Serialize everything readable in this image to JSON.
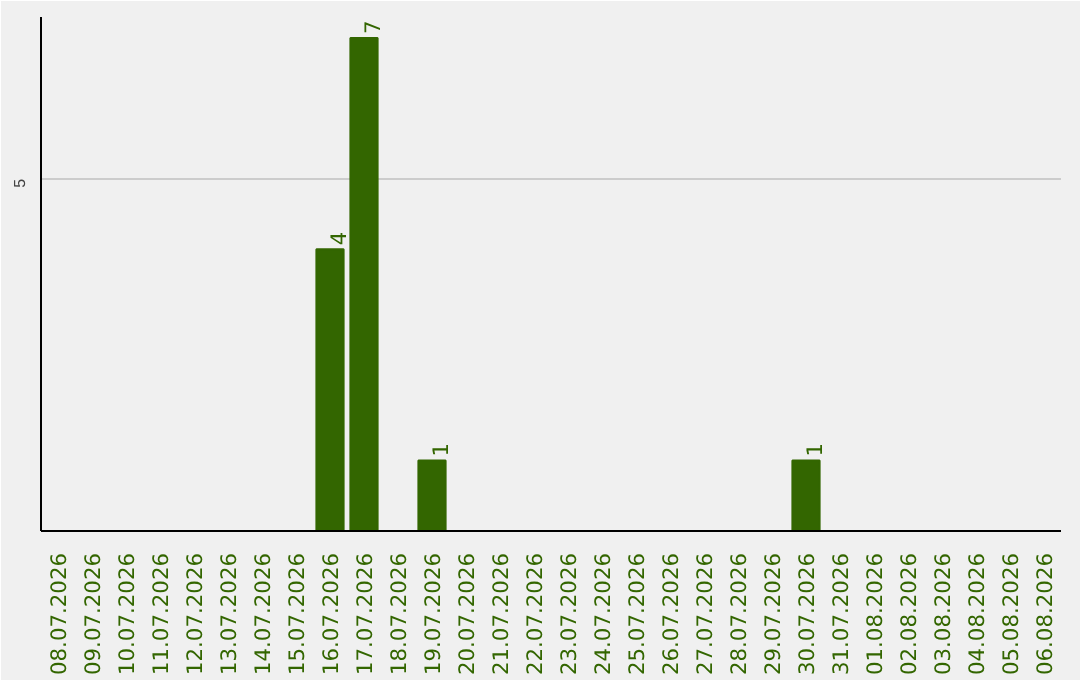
{
  "chart_data": {
    "type": "bar",
    "categories": [
      "08.07.2026",
      "09.07.2026",
      "10.07.2026",
      "11.07.2026",
      "12.07.2026",
      "13.07.2026",
      "14.07.2026",
      "15.07.2026",
      "16.07.2026",
      "17.07.2026",
      "18.07.2026",
      "19.07.2026",
      "20.07.2026",
      "21.07.2026",
      "22.07.2026",
      "23.07.2026",
      "24.07.2026",
      "25.07.2026",
      "26.07.2026",
      "27.07.2026",
      "28.07.2026",
      "29.07.2026",
      "30.07.2026",
      "31.07.2026",
      "01.08.2026",
      "02.08.2026",
      "03.08.2026",
      "04.08.2026",
      "05.08.2026",
      "06.08.2026"
    ],
    "values": [
      0,
      0,
      0,
      0,
      0,
      0,
      0,
      0,
      4,
      7,
      0,
      1,
      0,
      0,
      0,
      0,
      0,
      0,
      0,
      0,
      0,
      0,
      1,
      0,
      0,
      0,
      0,
      0,
      0,
      0
    ],
    "value_labels": [
      null,
      null,
      null,
      null,
      null,
      null,
      null,
      null,
      "4",
      "7",
      null,
      "1",
      null,
      null,
      null,
      null,
      null,
      null,
      null,
      null,
      null,
      null,
      "1",
      null,
      null,
      null,
      null,
      null,
      null,
      null
    ],
    "color": "#336600",
    "ylim": [
      0,
      7.3
    ],
    "yticks": [
      5
    ],
    "grid": "y"
  }
}
